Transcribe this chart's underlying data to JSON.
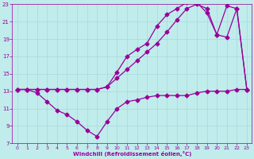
{
  "xlabel": "Windchill (Refroidissement éolien,°C)",
  "bg_color": "#c0ecec",
  "grid_color": "#a8d8d8",
  "line_color": "#990099",
  "marker": "D",
  "markersize": 2.5,
  "linewidth": 0.9,
  "xlim": [
    -0.5,
    23.5
  ],
  "ylim": [
    7,
    23
  ],
  "xticks": [
    0,
    1,
    2,
    3,
    4,
    5,
    6,
    7,
    8,
    9,
    10,
    11,
    12,
    13,
    14,
    15,
    16,
    17,
    18,
    19,
    20,
    21,
    22,
    23
  ],
  "yticks": [
    7,
    9,
    11,
    13,
    15,
    17,
    19,
    21,
    23
  ],
  "line1_x": [
    0,
    1,
    2,
    3,
    4,
    5,
    6,
    7,
    8,
    9,
    10,
    11,
    12,
    13,
    14,
    15,
    16,
    17,
    18,
    19,
    20,
    21,
    22,
    23
  ],
  "line1_y": [
    13.2,
    13.2,
    12.8,
    11.8,
    10.8,
    10.3,
    9.5,
    8.5,
    7.8,
    9.5,
    11.0,
    11.8,
    12.0,
    12.3,
    12.5,
    12.5,
    12.5,
    12.5,
    12.8,
    13.0,
    13.0,
    13.0,
    13.2,
    13.2
  ],
  "line2_x": [
    0,
    1,
    2,
    3,
    4,
    5,
    6,
    7,
    8,
    9,
    10,
    11,
    12,
    13,
    14,
    15,
    16,
    17,
    18,
    19,
    20,
    21,
    22,
    23
  ],
  "line2_y": [
    13.2,
    13.2,
    13.2,
    13.2,
    13.2,
    13.2,
    13.2,
    13.2,
    13.2,
    13.5,
    14.5,
    15.5,
    16.5,
    17.5,
    18.5,
    19.8,
    21.2,
    22.5,
    23.0,
    22.5,
    19.5,
    19.2,
    22.5,
    13.2
  ],
  "line3_x": [
    0,
    1,
    2,
    3,
    4,
    5,
    6,
    7,
    8,
    9,
    10,
    11,
    12,
    13,
    14,
    15,
    16,
    17,
    18,
    19,
    20,
    21,
    22,
    23
  ],
  "line3_y": [
    13.2,
    13.2,
    13.2,
    13.2,
    13.2,
    13.2,
    13.2,
    13.2,
    13.2,
    13.5,
    15.2,
    17.0,
    17.8,
    18.5,
    20.5,
    21.8,
    22.5,
    23.2,
    23.2,
    22.0,
    19.5,
    22.8,
    22.5,
    13.2
  ]
}
